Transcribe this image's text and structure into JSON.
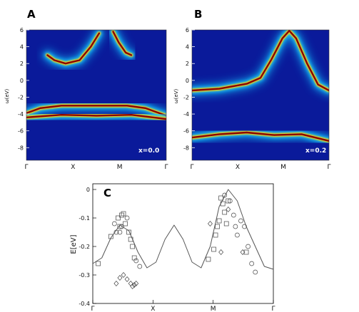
{
  "figure": {
    "panel_a": {
      "label": "A",
      "annotation": "x=0.0",
      "ylabel": "ω(eV)",
      "yticks": [
        "6",
        "4",
        "2",
        "0",
        "-2",
        "-4",
        "-6",
        "-8"
      ],
      "xticks": [
        "Γ",
        "X",
        "M",
        "Γ"
      ]
    },
    "panel_b": {
      "label": "B",
      "annotation": "x=0.2",
      "ylabel": "ω(eV)",
      "yticks": [
        "6",
        "4",
        "2",
        "0",
        "-2",
        "-4",
        "-6",
        "-8"
      ],
      "xticks": [
        "Γ",
        "X",
        "M",
        "Γ"
      ]
    },
    "panel_c": {
      "label": "C",
      "ylabel": "E[eV]",
      "yticks": [
        "0",
        "-0.1",
        "-0.2",
        "-0.3",
        "-0.4"
      ],
      "xticks": [
        "Γ",
        "X",
        "M",
        "Γ"
      ]
    }
  },
  "colors": {
    "map_background": "#0a1a9a",
    "band_core": "#8b0000",
    "band_mid": "#ffd200",
    "band_outer": "#19c8ff"
  },
  "chart_data": [
    {
      "type": "heatmap",
      "title": "",
      "ylabel": "ω(eV)",
      "ylim": [
        -9.5,
        6
      ],
      "x": [
        "Γ",
        "X",
        "M",
        "Γ"
      ],
      "series": [
        {
          "values": [
            [
              0.15,
              3.0
            ],
            [
              0.2,
              2.4
            ],
            [
              0.28,
              2.0
            ],
            [
              0.38,
              2.4
            ],
            [
              0.46,
              4.0
            ],
            [
              0.52,
              5.6
            ]
          ]
        },
        {
          "values": [
            [
              0.62,
              5.8
            ],
            [
              0.66,
              4.5
            ],
            [
              0.71,
              3.3
            ],
            [
              0.75,
              3.0
            ]
          ]
        },
        {
          "values": [
            [
              0.0,
              -3.9
            ],
            [
              0.1,
              -3.3
            ],
            [
              0.25,
              -3.0
            ],
            [
              0.5,
              -3.0
            ],
            [
              0.72,
              -3.0
            ],
            [
              0.85,
              -3.3
            ],
            [
              1.0,
              -4.2
            ]
          ]
        },
        {
          "values": [
            [
              0.0,
              -4.4
            ],
            [
              0.25,
              -4.1
            ],
            [
              0.5,
              -4.2
            ],
            [
              0.75,
              -4.1
            ],
            [
              1.0,
              -4.6
            ]
          ]
        }
      ]
    },
    {
      "type": "heatmap",
      "title": "",
      "ylabel": "ω(eV)",
      "ylim": [
        -9.5,
        6
      ],
      "x": [
        "Γ",
        "X",
        "M",
        "Γ"
      ],
      "series": [
        {
          "values": [
            [
              0.0,
              -1.2
            ],
            [
              0.2,
              -1.0
            ],
            [
              0.4,
              -0.4
            ],
            [
              0.5,
              0.3
            ],
            [
              0.58,
              2.5
            ],
            [
              0.66,
              5.0
            ],
            [
              0.71,
              5.9
            ],
            [
              0.76,
              5.0
            ],
            [
              0.84,
              2.0
            ],
            [
              0.92,
              -0.5
            ],
            [
              1.0,
              -1.2
            ]
          ]
        },
        {
          "values": [
            [
              0.0,
              -6.8
            ],
            [
              0.2,
              -6.4
            ],
            [
              0.4,
              -6.2
            ],
            [
              0.6,
              -6.5
            ],
            [
              0.8,
              -6.4
            ],
            [
              1.0,
              -7.2
            ]
          ]
        }
      ]
    },
    {
      "type": "scatter",
      "title": "",
      "ylabel": "E[eV]",
      "ylim": [
        -0.4,
        0.02
      ],
      "xticks": [
        "Γ",
        "X",
        "M",
        "Γ"
      ],
      "series": [
        {
          "style": "line",
          "values": [
            [
              0.0,
              -0.26
            ],
            [
              0.05,
              -0.24
            ],
            [
              0.1,
              -0.17
            ],
            [
              0.15,
              -0.125
            ],
            [
              0.2,
              -0.145
            ],
            [
              0.25,
              -0.22
            ],
            [
              0.3,
              -0.275
            ],
            [
              0.35,
              -0.255
            ],
            [
              0.4,
              -0.175
            ],
            [
              0.45,
              -0.125
            ],
            [
              0.5,
              -0.175
            ],
            [
              0.55,
              -0.255
            ],
            [
              0.6,
              -0.275
            ],
            [
              0.65,
              -0.2
            ],
            [
              0.7,
              -0.06
            ],
            [
              0.75,
              0.0
            ],
            [
              0.8,
              -0.04
            ],
            [
              0.85,
              -0.13
            ],
            [
              0.9,
              -0.2
            ],
            [
              0.95,
              -0.27
            ],
            [
              1.0,
              -0.28
            ]
          ]
        },
        {
          "style": "square",
          "values": [
            [
              0.03,
              -0.26
            ],
            [
              0.1,
              -0.165
            ],
            [
              0.14,
              -0.1
            ],
            [
              0.16,
              -0.09
            ],
            [
              0.17,
              -0.085
            ],
            [
              0.15,
              -0.13
            ],
            [
              0.18,
              -0.12
            ],
            [
              0.2,
              -0.15
            ],
            [
              0.21,
              -0.175
            ],
            [
              0.22,
              -0.2
            ],
            [
              0.23,
              -0.24
            ],
            [
              0.71,
              -0.03
            ],
            [
              0.72,
              -0.05
            ],
            [
              0.73,
              -0.08
            ],
            [
              0.74,
              -0.12
            ],
            [
              0.75,
              -0.04
            ],
            [
              0.7,
              -0.11
            ],
            [
              0.69,
              -0.13
            ],
            [
              0.68,
              -0.16
            ],
            [
              0.67,
              -0.21
            ],
            [
              0.64,
              -0.245
            ],
            [
              0.85,
              -0.22
            ]
          ]
        },
        {
          "style": "circle",
          "values": [
            [
              0.12,
              -0.12
            ],
            [
              0.13,
              -0.15
            ],
            [
              0.15,
              -0.15
            ],
            [
              0.16,
              -0.13
            ],
            [
              0.19,
              -0.1
            ],
            [
              0.24,
              -0.25
            ],
            [
              0.26,
              -0.27
            ],
            [
              0.73,
              -0.02
            ],
            [
              0.76,
              -0.04
            ],
            [
              0.78,
              -0.09
            ],
            [
              0.79,
              -0.13
            ],
            [
              0.8,
              -0.16
            ],
            [
              0.82,
              -0.11
            ],
            [
              0.84,
              -0.13
            ],
            [
              0.86,
              -0.2
            ],
            [
              0.88,
              -0.26
            ],
            [
              0.9,
              -0.29
            ]
          ]
        },
        {
          "style": "diamond",
          "values": [
            [
              0.13,
              -0.33
            ],
            [
              0.15,
              -0.31
            ],
            [
              0.17,
              -0.3
            ],
            [
              0.19,
              -0.315
            ],
            [
              0.21,
              -0.33
            ],
            [
              0.22,
              -0.34
            ],
            [
              0.23,
              -0.335
            ],
            [
              0.24,
              -0.33
            ],
            [
              0.65,
              -0.12
            ],
            [
              0.71,
              -0.22
            ],
            [
              0.75,
              -0.07
            ],
            [
              0.83,
              -0.22
            ]
          ]
        }
      ]
    }
  ]
}
